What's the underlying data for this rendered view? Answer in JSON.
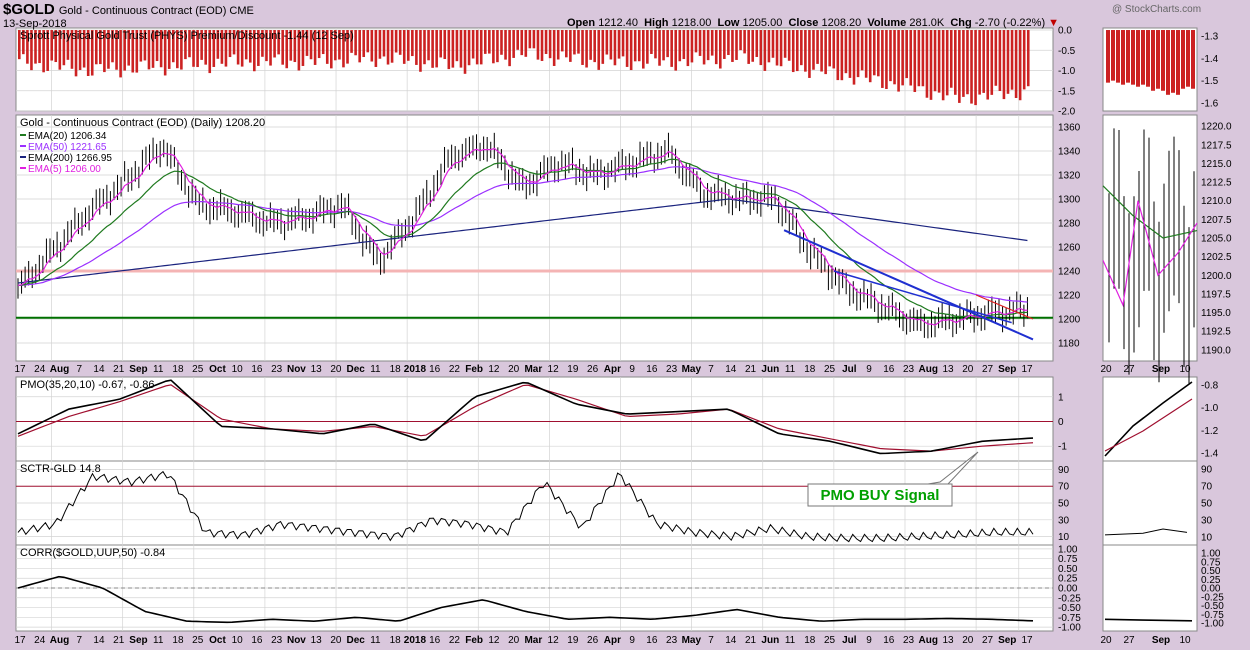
{
  "header": {
    "symbol": "$GOLD",
    "description": "Gold - Continuous Contract (EOD) CME",
    "date": "13-Sep-2018",
    "open_label": "Open",
    "open": "1212.40",
    "high_label": "High",
    "high": "1218.00",
    "low_label": "Low",
    "low": "1205.00",
    "close_label": "Close",
    "close": "1208.20",
    "volume_label": "Volume",
    "volume": "281.0K",
    "chg_label": "Chg",
    "chg": "-2.70 (-0.22%)",
    "credit": "@ StockCharts.com"
  },
  "colors": {
    "bg": "#d9c7dc",
    "panel": "#ffffff",
    "grid": "#d3d3d3",
    "price": "#000000",
    "ema20": "#1f7a1f",
    "ema50": "#9b30ff",
    "ema200": "#1a237e",
    "ema5": "#e020e0",
    "phys": "#cc2222",
    "support": "#007000",
    "resistance": "#f4b4b4",
    "trend_blue": "#1f2fd0",
    "trend_red": "#e02020",
    "pmo_signal": "#a01030",
    "annotation": "#00a000"
  },
  "chart_data": [
    {
      "type": "bar",
      "panel": "phys",
      "title": "Sprott Physical Gold Trust (PHYS) Premium/Discount -1.44 (12 Sep)",
      "y_ticks": [
        "0.0",
        "-0.5",
        "-1.0",
        "-1.5",
        "-2.0"
      ],
      "ylim": [
        -2.0,
        0
      ],
      "x_months": [
        0,
        1,
        2,
        3,
        4,
        5,
        6,
        7,
        8,
        9,
        10,
        11,
        12,
        13,
        14
      ],
      "values": [
        -0.8,
        -1.0,
        -0.9,
        -0.8,
        -0.8,
        -0.7,
        -0.9,
        -0.6,
        -0.8,
        -0.8,
        -0.7,
        -1.0,
        -1.3,
        -1.7,
        -1.5
      ],
      "zoom_y_ticks": [
        "-1.3",
        "-1.4",
        "-1.5",
        "-1.6"
      ],
      "zoom_values": [
        -1.3,
        -1.35,
        -1.4,
        -1.5,
        -1.6,
        -1.45
      ]
    },
    {
      "type": "line",
      "panel": "price",
      "title": "Gold - Continuous Contract (EOD) (Daily) 1208.20",
      "legend": [
        {
          "name": "EMA(20) 1206.34",
          "color": "#1f7a1f"
        },
        {
          "name": "EMA(50) 1221.65",
          "color": "#9b30ff"
        },
        {
          "name": "EMA(200) 1266.95",
          "color": "#1a237e"
        },
        {
          "name": "EMA(5) 1206.00",
          "color": "#e020e0"
        }
      ],
      "y_ticks": [
        "1360",
        "1340",
        "1320",
        "1300",
        "1280",
        "1260",
        "1240",
        "1220",
        "1200",
        "1180"
      ],
      "ylim": [
        1165,
        1370
      ],
      "x_months": [
        0,
        0.5,
        1,
        1.5,
        2,
        2.5,
        3,
        3.5,
        4,
        4.5,
        5,
        5.5,
        6,
        6.5,
        7,
        7.5,
        8,
        8.5,
        9,
        9.5,
        10,
        10.5,
        11,
        11.5,
        12,
        12.5,
        13,
        13.5,
        14
      ],
      "close": [
        1225,
        1258,
        1290,
        1315,
        1345,
        1295,
        1290,
        1280,
        1285,
        1295,
        1248,
        1285,
        1335,
        1345,
        1310,
        1330,
        1320,
        1330,
        1340,
        1305,
        1300,
        1300,
        1255,
        1225,
        1210,
        1195,
        1200,
        1205,
        1208
      ],
      "support": 1201,
      "resistance": 1240,
      "trend_blue_start": [
        10.8,
        1274
      ],
      "trend_blue_end": [
        14.3,
        1183
      ],
      "trend_blue2_start": [
        11.5,
        1240
      ],
      "trend_blue2_end": [
        14.0,
        1197
      ],
      "trend_red_start": [
        13.5,
        1220
      ],
      "trend_red_end": [
        14.3,
        1200
      ],
      "x_tick_labels": [
        "17",
        "24",
        "Aug",
        "7",
        "14",
        "21",
        "Sep",
        "11",
        "18",
        "25",
        "Oct",
        "10",
        "16",
        "23",
        "Nov",
        "13",
        "20",
        "Dec",
        "11",
        "18",
        "2018",
        "16",
        "22",
        "Feb",
        "12",
        "20",
        "Mar",
        "12",
        "19",
        "26",
        "Apr",
        "9",
        "16",
        "23",
        "May",
        "7",
        "14",
        "21",
        "Jun",
        "11",
        "18",
        "25",
        "Jul",
        "9",
        "16",
        "23",
        "Aug",
        "13",
        "20",
        "27",
        "Sep",
        "17"
      ],
      "zoom_y_ticks": [
        "1220.0",
        "1217.5",
        "1215.0",
        "1212.5",
        "1210.0",
        "1207.5",
        "1205.0",
        "1202.5",
        "1200.0",
        "1197.5",
        "1195.0",
        "1192.5",
        "1190.0"
      ],
      "zoom_x_tick_labels": [
        "20",
        "27",
        "Sep",
        "10"
      ]
    },
    {
      "type": "line",
      "panel": "pmo",
      "title": "PMO(35,20,10) -0.67, -0.86",
      "y_ticks": [
        "1",
        "0",
        "-1"
      ],
      "ylim": [
        -1.6,
        1.8
      ],
      "pmo": [
        -0.5,
        0.5,
        0.9,
        1.7,
        -0.2,
        -0.3,
        -0.5,
        -0.1,
        -0.8,
        1.0,
        1.6,
        0.7,
        0.3,
        0.4,
        0.5,
        -0.5,
        -0.8,
        -1.3,
        -1.2,
        -0.8,
        -0.67
      ],
      "signal": [
        -0.6,
        0.2,
        0.8,
        1.5,
        0.1,
        -0.3,
        -0.4,
        -0.2,
        -0.6,
        0.6,
        1.5,
        0.9,
        0.2,
        0.3,
        0.5,
        -0.3,
        -0.7,
        -1.1,
        -1.2,
        -1.0,
        -0.86
      ],
      "zoom_y_ticks": [
        "-0.8",
        "-1.0",
        "-1.2",
        "-1.4"
      ]
    },
    {
      "type": "line",
      "panel": "sctr",
      "title": "SCTR-GLD 14.8",
      "y_ticks": [
        "90",
        "70",
        "50",
        "30",
        "10"
      ],
      "ylim": [
        0,
        100
      ],
      "values": [
        15,
        25,
        82,
        75,
        85,
        15,
        12,
        25,
        20,
        15,
        10,
        30,
        25,
        15,
        75,
        20,
        85,
        25,
        15,
        10,
        20,
        10,
        8,
        8,
        10,
        12,
        15,
        14.8
      ],
      "zoom_y_ticks": [
        "90",
        "70",
        "50",
        "30",
        "10"
      ]
    },
    {
      "type": "line",
      "panel": "corr",
      "title": "CORR($GOLD,UUP,50) -0.84",
      "y_ticks": [
        "1.00",
        "0.75",
        "0.50",
        "0.25",
        "0.00",
        "-0.25",
        "-0.50",
        "-0.75",
        "-1.00"
      ],
      "ylim": [
        -1.1,
        1.1
      ],
      "values": [
        0.0,
        0.3,
        0.0,
        -0.6,
        -0.85,
        -0.88,
        -0.8,
        -0.85,
        -0.75,
        -0.85,
        -0.5,
        -0.3,
        -0.6,
        -0.8,
        -0.75,
        -0.8,
        -0.7,
        -0.55,
        -0.75,
        -0.85,
        -0.8,
        -0.8,
        -0.78,
        -0.8,
        -0.84
      ],
      "zoom_y_ticks": [
        "1.00",
        "0.75",
        "0.50",
        "0.25",
        "0.00",
        "-0.25",
        "-0.50",
        "-0.75",
        "-1.00"
      ]
    }
  ],
  "annotation": {
    "text": "PMO BUY Signal"
  }
}
